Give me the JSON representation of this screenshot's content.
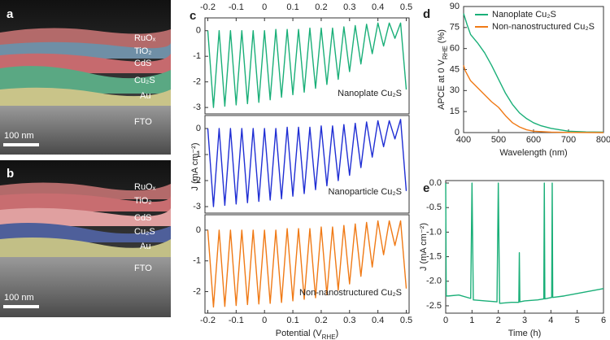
{
  "panels": [
    {
      "label": "a",
      "layers": [
        "RuOₓ",
        "TiO₂",
        "CdS",
        "Cu₂S",
        "Au",
        "FTO"
      ],
      "scale_bar": "100 nm"
    },
    {
      "label": "b",
      "layers": [
        "RuOₓ",
        "TiO₂",
        "CdS",
        "Cu₂S",
        "Au",
        "FTO"
      ],
      "scale_bar": "100 nm"
    }
  ],
  "chart_data": [
    {
      "type": "line",
      "panel_label": "c",
      "x": [
        -0.2,
        -0.18,
        -0.16,
        -0.14,
        -0.12,
        -0.1,
        -0.08,
        -0.06,
        -0.04,
        -0.02,
        0,
        0.02,
        0.04,
        0.06,
        0.08,
        0.1,
        0.12,
        0.14,
        0.16,
        0.18,
        0.2,
        0.22,
        0.24,
        0.26,
        0.28,
        0.3,
        0.32,
        0.34,
        0.36,
        0.38,
        0.4,
        0.42,
        0.44,
        0.46,
        0.48,
        0.5
      ],
      "xlim": [
        -0.21,
        0.51
      ],
      "x2ticks": [
        -0.2,
        -0.1,
        0,
        0.1,
        0.2,
        0.3,
        0.4,
        0.5
      ],
      "ylim": [
        -3.25,
        0.5
      ],
      "yticks": [
        0,
        -1,
        -2,
        -3
      ],
      "annotation": "Nanoplate Cu₂S",
      "series": [
        {
          "name": "Nanoplate Cu₂S",
          "color": "#1aaf78",
          "values": [
            0,
            -3.0,
            0,
            -2.95,
            0,
            -2.9,
            0,
            -2.85,
            0,
            -2.8,
            0,
            -2.7,
            0.05,
            -2.6,
            0.05,
            -2.5,
            0.05,
            -2.4,
            0.1,
            -2.25,
            0.1,
            -2.1,
            0.1,
            -1.9,
            0.15,
            -1.6,
            0.2,
            -1.3,
            0.25,
            -0.9,
            0.3,
            -0.6,
            0.3,
            -0.3,
            0.3,
            -2.3
          ]
        }
      ]
    },
    {
      "type": "line",
      "x": [
        -0.2,
        -0.18,
        -0.16,
        -0.14,
        -0.12,
        -0.1,
        -0.08,
        -0.06,
        -0.04,
        -0.02,
        0,
        0.02,
        0.04,
        0.06,
        0.08,
        0.1,
        0.12,
        0.14,
        0.16,
        0.18,
        0.2,
        0.22,
        0.24,
        0.26,
        0.28,
        0.3,
        0.32,
        0.34,
        0.36,
        0.38,
        0.4,
        0.42,
        0.44,
        0.46,
        0.48,
        0.5
      ],
      "xlim": [
        -0.21,
        0.51
      ],
      "ylim": [
        -3.25,
        0.5
      ],
      "yticks": [
        0,
        -1,
        -2,
        -3
      ],
      "ylabel": [
        {
          "text": "J (mA cm⁻²)"
        }
      ],
      "annotation": "Nanoparticle Cu₂S",
      "series": [
        {
          "name": "Nanoparticle Cu₂S",
          "color": "#1f2ed4",
          "values": [
            0,
            -3.0,
            0,
            -2.95,
            0,
            -2.9,
            0,
            -2.85,
            0,
            -2.8,
            0,
            -2.75,
            0,
            -2.7,
            0.05,
            -2.6,
            0.05,
            -2.5,
            0.05,
            -2.35,
            0.1,
            -2.2,
            0.1,
            -2.0,
            0.15,
            -1.8,
            0.2,
            -1.5,
            0.25,
            -1.1,
            0.3,
            -0.7,
            0.3,
            -0.4,
            0.35,
            -2.4
          ]
        }
      ]
    },
    {
      "type": "line",
      "x": [
        -0.2,
        -0.18,
        -0.16,
        -0.14,
        -0.12,
        -0.1,
        -0.08,
        -0.06,
        -0.04,
        -0.02,
        0,
        0.02,
        0.04,
        0.06,
        0.08,
        0.1,
        0.12,
        0.14,
        0.16,
        0.18,
        0.2,
        0.22,
        0.24,
        0.26,
        0.28,
        0.3,
        0.32,
        0.34,
        0.36,
        0.38,
        0.4,
        0.42,
        0.44,
        0.46,
        0.48,
        0.5
      ],
      "xlim": [
        -0.21,
        0.51
      ],
      "xticks": [
        -0.2,
        -0.1,
        0,
        0.1,
        0.2,
        0.3,
        0.4,
        0.5
      ],
      "ylim": [
        -2.7,
        0.5
      ],
      "yticks": [
        0,
        -1,
        -2
      ],
      "xlabel": [
        {
          "text": "Potential (V"
        },
        {
          "text": "RHE",
          "sub": true
        },
        {
          "text": ")"
        }
      ],
      "annotation": "Non-nanostructured Cu₂S",
      "series": [
        {
          "name": "Non-nanostructured Cu₂S",
          "color": "#f07a16",
          "values": [
            0,
            -2.5,
            0,
            -2.48,
            0,
            -2.45,
            0,
            -2.42,
            0,
            -2.4,
            0,
            -2.38,
            0,
            -2.35,
            0.05,
            -2.3,
            0.05,
            -2.25,
            0.05,
            -2.2,
            0.1,
            -2.1,
            0.1,
            -1.95,
            0.15,
            -1.75,
            0.2,
            -1.5,
            0.25,
            -1.2,
            0.3,
            -0.8,
            0.3,
            -0.5,
            0.3,
            -1.9
          ]
        }
      ]
    },
    {
      "type": "line",
      "panel_label": "d",
      "xlim": [
        400,
        800
      ],
      "xticks": [
        400,
        500,
        600,
        700,
        800
      ],
      "ylim": [
        0,
        90
      ],
      "yticks": [
        0,
        15,
        30,
        45,
        60,
        75,
        90
      ],
      "xlabel": [
        {
          "text": "Wavelength (nm)"
        }
      ],
      "ylabel": [
        {
          "text": "APCE at 0 V"
        },
        {
          "text": "RHE",
          "sub": true
        },
        {
          "text": " (%)"
        }
      ],
      "legend": "upper right",
      "series": [
        {
          "name": "Nanoplate Cu₂S",
          "color": "#1aaf78",
          "x": [
            400,
            410,
            420,
            440,
            460,
            480,
            500,
            520,
            540,
            560,
            580,
            600,
            620,
            650,
            700,
            750,
            800
          ],
          "values": [
            85,
            77,
            70,
            64,
            57,
            48,
            38,
            28,
            20,
            14,
            10,
            7,
            5,
            3,
            1,
            0.5,
            0.3
          ]
        },
        {
          "name": "Non-nanostructured Cu₂S",
          "color": "#f07a16",
          "x": [
            400,
            405,
            420,
            440,
            460,
            480,
            500,
            520,
            540,
            560,
            580,
            600,
            650,
            700,
            800
          ],
          "values": [
            48,
            44,
            37,
            32,
            27,
            22,
            18,
            12,
            7,
            4,
            2,
            1,
            0.3,
            0.1,
            0
          ]
        }
      ]
    },
    {
      "type": "line",
      "panel_label": "e",
      "xlim": [
        0,
        6
      ],
      "xticks": [
        0,
        1,
        2,
        3,
        4,
        5,
        6
      ],
      "ylim": [
        -2.65,
        0.05
      ],
      "yticks": [
        {
          "value": 0,
          "label": "0.0"
        },
        -0.5,
        {
          "value": -1,
          "label": "-1.0"
        },
        -1.5,
        {
          "value": -2,
          "label": "-2.0"
        },
        -2.5
      ],
      "xlabel": [
        {
          "text": "Time (h)"
        }
      ],
      "ylabel": [
        {
          "text": "J (mA cm⁻²)"
        }
      ],
      "series": [
        {
          "name": "Nanoplate Cu₂S",
          "color": "#1aaf78",
          "x": [
            0,
            0.02,
            0.1,
            0.5,
            0.95,
            1.0,
            1.05,
            1.5,
            1.95,
            2.0,
            2.05,
            2.5,
            2.78,
            2.8,
            2.82,
            3.0,
            3.5,
            3.73,
            3.75,
            3.77,
            4.03,
            4.05,
            4.07,
            4.5,
            5,
            5.5,
            6
          ],
          "values": [
            0,
            -2.3,
            -2.3,
            -2.28,
            -2.35,
            0,
            -2.38,
            -2.4,
            -2.42,
            0,
            -2.45,
            -2.43,
            -2.43,
            -1.42,
            -2.42,
            -2.4,
            -2.38,
            -2.36,
            0,
            -2.36,
            -2.33,
            0,
            -2.33,
            -2.3,
            -2.25,
            -2.2,
            -2.15
          ]
        }
      ]
    }
  ]
}
